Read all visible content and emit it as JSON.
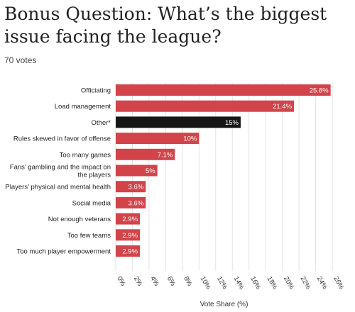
{
  "title": "Bonus Question: What’s the biggest issue facing the league?",
  "subtitle": "70 votes",
  "chart_data": {
    "type": "bar",
    "orientation": "horizontal",
    "categories": [
      [
        "Officiating"
      ],
      [
        "Load management"
      ],
      [
        "Other*"
      ],
      [
        "Rules skewed in favor of offense"
      ],
      [
        "Too many games"
      ],
      [
        "Fans’ gambling and the impact on",
        "the players"
      ],
      [
        "Players’ physical and mental health"
      ],
      [
        "Social media"
      ],
      [
        "Not enough veterans"
      ],
      [
        "Too few teams"
      ],
      [
        "Too much player empowerment"
      ]
    ],
    "values": [
      25.8,
      21.4,
      15,
      10,
      7.1,
      5,
      3.6,
      3.6,
      2.9,
      2.9,
      2.9
    ],
    "value_labels": [
      "25.8%",
      "21.4%",
      "15%",
      "10%",
      "7.1%",
      "5%",
      "3.6%",
      "3.6%",
      "2.9%",
      "2.9%",
      "2.9%"
    ],
    "highlight_index": 2,
    "colors": {
      "bar": "#d2444a",
      "highlight": "#161616",
      "label_text": "#ffffff"
    },
    "xlim": [
      0,
      26
    ],
    "xticks": [
      "0%",
      "2%",
      "4%",
      "6%",
      "8%",
      "10%",
      "12%",
      "14%",
      "16%",
      "18%",
      "20%",
      "22%",
      "24%",
      "26%"
    ],
    "xlabel": "Vote Share (%)",
    "ylabel": "",
    "grid": true
  }
}
